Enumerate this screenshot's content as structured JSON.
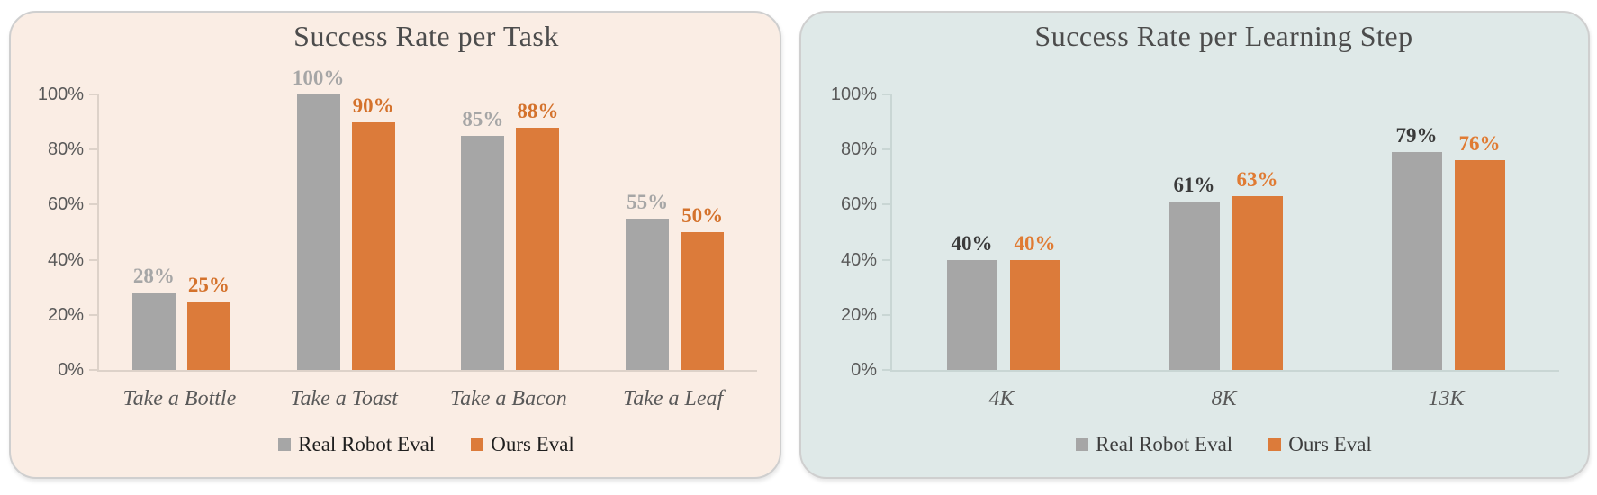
{
  "page": {
    "background": "#ffffff"
  },
  "chart_data": [
    {
      "type": "bar",
      "title": "Success Rate per Task",
      "panel_bg": "#faede4",
      "categories": [
        "Take a Bottle",
        "Take a Toast",
        "Take a Bacon",
        "Take a Leaf"
      ],
      "series": [
        {
          "name": "Real Robot Eval",
          "color": "#a6a6a6",
          "label_color": "#a6a6a6",
          "values": [
            28,
            100,
            85,
            55
          ],
          "labels": [
            "28%",
            "100%",
            "85%",
            "55%"
          ]
        },
        {
          "name": "Ours Eval",
          "color": "#dc7b3a",
          "label_color": "#d4722c",
          "values": [
            25,
            90,
            88,
            50
          ],
          "labels": [
            "25%",
            "90%",
            "88%",
            "50%"
          ]
        }
      ],
      "xlabel": "",
      "ylabel": "",
      "ylim": [
        0,
        100
      ],
      "ytick_labels": [
        "100%",
        "80%",
        "60%",
        "40%",
        "20%",
        "0%"
      ],
      "ytick_values": [
        100,
        80,
        60,
        40,
        20,
        0
      ],
      "grid": false,
      "legend_position": "bottom",
      "legend_text_color": "#1f1f1f"
    },
    {
      "type": "bar",
      "title": "Success Rate per Learning Step",
      "panel_bg": "#dfe9e8",
      "categories": [
        "4K",
        "8K",
        "13K"
      ],
      "series": [
        {
          "name": "Real Robot Eval",
          "color": "#a6a6a6",
          "label_color": "#3a3a3a",
          "values": [
            40,
            61,
            79
          ],
          "labels": [
            "40%",
            "61%",
            "79%"
          ]
        },
        {
          "name": "Ours Eval",
          "color": "#dc7b3a",
          "label_color": "#e07b33",
          "values": [
            40,
            63,
            76
          ],
          "labels": [
            "40%",
            "63%",
            "76%"
          ]
        }
      ],
      "xlabel": "",
      "ylabel": "",
      "ylim": [
        0,
        100
      ],
      "ytick_labels": [
        "100%",
        "80%",
        "60%",
        "40%",
        "20%",
        "0%"
      ],
      "ytick_values": [
        100,
        80,
        60,
        40,
        20,
        0
      ],
      "grid": false,
      "legend_position": "bottom",
      "legend_text_color": "#3d3d3d"
    }
  ]
}
